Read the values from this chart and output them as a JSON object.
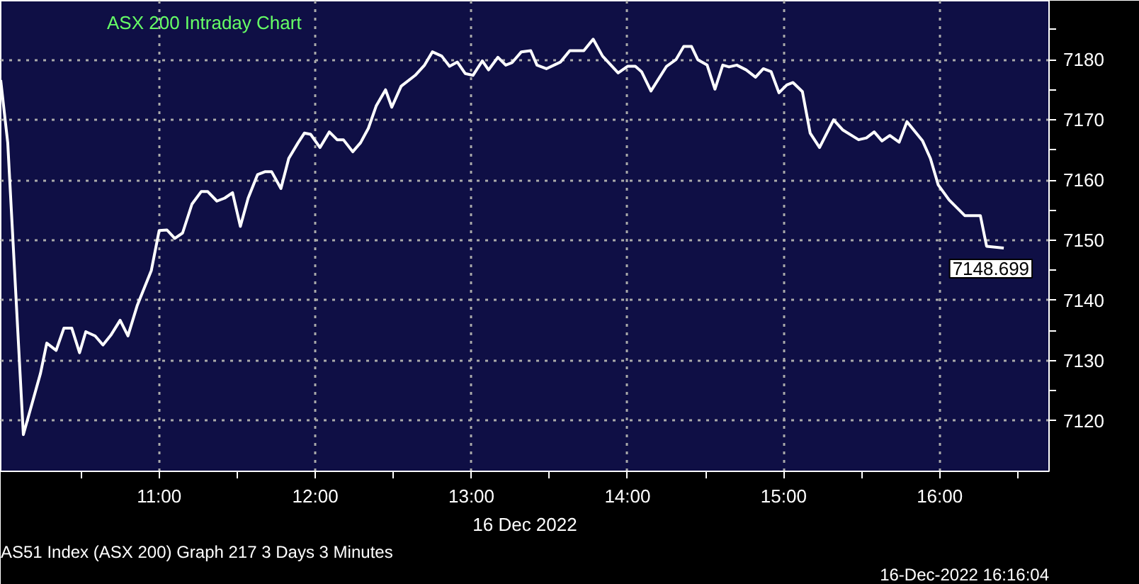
{
  "chart_data": {
    "type": "line",
    "title": "ASX 200 Intraday Chart",
    "xlabel": "16 Dec 2022",
    "annotations": [
      "AS51 Index (ASX 200) Graph 217 3 Days 3 Minutes",
      "16-Dec-2022 16:16:04",
      {
        "text": "7148.699",
        "x": 16.41,
        "y": 7148.699
      }
    ],
    "series": [
      {
        "color": "#ffffff",
        "x": [
          9.985,
          10.03,
          10.13,
          10.24,
          10.28,
          10.34,
          10.39,
          10.44,
          10.49,
          10.53,
          10.59,
          10.64,
          10.69,
          10.75,
          10.8,
          10.86,
          10.95,
          11.0,
          11.05,
          11.1,
          11.15,
          11.21,
          11.27,
          11.31,
          11.37,
          11.42,
          11.47,
          11.52,
          11.57,
          11.63,
          11.68,
          11.72,
          11.78,
          11.83,
          11.89,
          11.93,
          11.97,
          12.03,
          12.09,
          12.14,
          12.18,
          12.24,
          12.29,
          12.34,
          12.39,
          12.45,
          12.49,
          12.55,
          12.64,
          12.7,
          12.75,
          12.81,
          12.86,
          12.91,
          12.96,
          13.01,
          13.07,
          13.11,
          13.17,
          13.22,
          13.26,
          13.32,
          13.38,
          13.42,
          13.48,
          13.57,
          13.63,
          13.72,
          13.78,
          13.84,
          13.94,
          14.0,
          14.05,
          14.09,
          14.15,
          14.25,
          14.31,
          14.36,
          14.41,
          14.45,
          14.51,
          14.56,
          14.61,
          14.65,
          14.7,
          14.76,
          14.82,
          14.87,
          14.92,
          14.97,
          15.02,
          15.06,
          15.12,
          15.17,
          15.23,
          15.32,
          15.38,
          15.48,
          15.53,
          15.58,
          15.63,
          15.68,
          15.74,
          15.79,
          15.89,
          15.94,
          15.99,
          16.06,
          16.16,
          16.26,
          16.3,
          16.41
        ],
        "values": [
          7176.6,
          7166.2,
          7117.7,
          7127.9,
          7132.9,
          7131.7,
          7135.4,
          7135.4,
          7131.3,
          7134.8,
          7134.1,
          7132.6,
          7134.2,
          7136.7,
          7134.1,
          7139.2,
          7145.0,
          7151.6,
          7151.7,
          7150.3,
          7151.2,
          7156.0,
          7158.1,
          7158.1,
          7156.5,
          7157.0,
          7157.9,
          7152.3,
          7157.0,
          7160.9,
          7161.4,
          7161.4,
          7158.6,
          7163.6,
          7166.2,
          7167.8,
          7167.6,
          7165.4,
          7168.0,
          7166.7,
          7166.7,
          7164.7,
          7166.2,
          7168.6,
          7172.3,
          7175.0,
          7172.1,
          7175.6,
          7177.4,
          7179.1,
          7181.3,
          7180.6,
          7178.9,
          7179.6,
          7177.7,
          7177.4,
          7179.8,
          7178.3,
          7180.4,
          7179.1,
          7179.5,
          7181.3,
          7181.5,
          7179.1,
          7178.5,
          7179.6,
          7181.5,
          7181.5,
          7183.4,
          7180.6,
          7177.8,
          7178.9,
          7178.9,
          7178.0,
          7174.8,
          7178.9,
          7180.0,
          7182.2,
          7182.2,
          7180.0,
          7179.1,
          7175.1,
          7179.1,
          7178.8,
          7179.1,
          7178.3,
          7177.1,
          7178.5,
          7178.0,
          7174.5,
          7175.8,
          7176.2,
          7174.7,
          7167.8,
          7165.4,
          7170.0,
          7168.3,
          7166.7,
          7167.0,
          7168.0,
          7166.5,
          7167.4,
          7166.3,
          7169.7,
          7166.5,
          7163.6,
          7159.2,
          7156.7,
          7154.1,
          7154.1,
          7149.0,
          7148.699
        ]
      }
    ],
    "xlim": [
      9.985,
      16.7
    ],
    "ylim": [
      7111.6,
      7189.8
    ],
    "xticks": [
      {
        "value": 10.5,
        "label": null
      },
      {
        "value": 11,
        "label": "11:00"
      },
      {
        "value": 11.5,
        "label": null
      },
      {
        "value": 12,
        "label": "12:00"
      },
      {
        "value": 12.5,
        "label": null
      },
      {
        "value": 13,
        "label": "13:00"
      },
      {
        "value": 13.5,
        "label": null
      },
      {
        "value": 14,
        "label": "14:00"
      },
      {
        "value": 14.5,
        "label": null
      },
      {
        "value": 15,
        "label": "15:00"
      },
      {
        "value": 15.5,
        "label": null
      },
      {
        "value": 16,
        "label": "16:00"
      },
      {
        "value": 16.5,
        "label": null
      }
    ],
    "yticks": [
      7120,
      {
        "value": 7125,
        "label": null
      },
      7130,
      {
        "value": 7135,
        "label": null
      },
      7140,
      {
        "value": 7145,
        "label": null
      },
      7150,
      {
        "value": 7155,
        "label": null
      },
      7160,
      {
        "value": 7165,
        "label": null
      },
      7170,
      {
        "value": 7175,
        "label": null
      },
      7180,
      {
        "value": 7185,
        "label": null
      }
    ],
    "grid": true,
    "line_style": "solid"
  }
}
